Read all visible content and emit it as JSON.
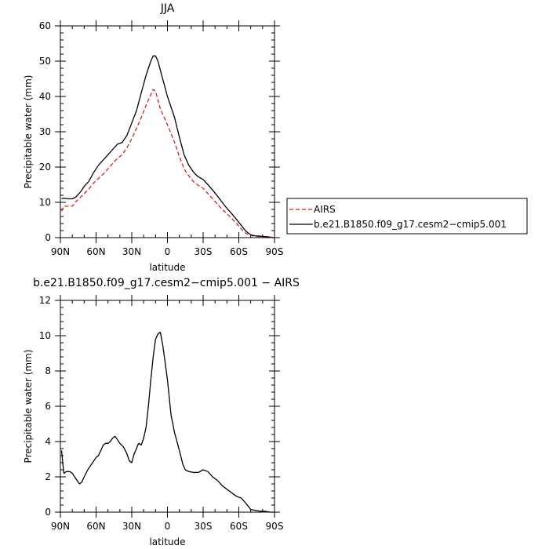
{
  "chart_data": [
    {
      "type": "line",
      "title": "JJA",
      "xlabel": "latitude",
      "ylabel": "Precipitable water (mm)",
      "xlim": [
        90,
        -90
      ],
      "ylim": [
        0,
        60
      ],
      "x_ticks": [
        90,
        60,
        30,
        0,
        -30,
        -60,
        -90
      ],
      "x_tick_labels": [
        "90N",
        "60N",
        "30N",
        "0",
        "30S",
        "60S",
        "90S"
      ],
      "y_ticks": [
        0,
        10,
        20,
        30,
        40,
        50,
        60
      ],
      "y_tick_labels": [
        "0",
        "10",
        "20",
        "30",
        "40",
        "50",
        "60"
      ],
      "grid": false,
      "legend_position": "outside-right",
      "series": [
        {
          "name": "AIRS",
          "color": "#e41a1c",
          "dash": "dashed",
          "x": [
            89,
            87,
            84,
            80,
            77,
            73,
            70,
            66,
            62,
            58,
            54,
            50,
            46,
            42,
            38,
            34,
            30,
            26,
            22,
            18,
            14,
            12,
            10,
            8,
            6,
            4,
            2,
            0,
            -3,
            -6,
            -10,
            -14,
            -18,
            -22,
            -26,
            -30,
            -34,
            -38,
            -42,
            -46,
            -50,
            -54,
            -58,
            -62,
            -66,
            -70,
            -74,
            -78,
            -82,
            -86,
            -89
          ],
          "y": [
            7.5,
            8.9,
            8.9,
            8.9,
            10.2,
            11.5,
            12.5,
            13.8,
            15.5,
            16.8,
            18.0,
            19.5,
            21.0,
            22.5,
            23.5,
            25.5,
            28.0,
            31.0,
            34.0,
            37.5,
            40.5,
            42.0,
            41.5,
            39.0,
            36.5,
            35.0,
            33.5,
            32.0,
            29.5,
            27.0,
            23.0,
            19.5,
            17.5,
            15.8,
            14.8,
            14.0,
            12.5,
            11.0,
            9.5,
            8.0,
            6.8,
            5.5,
            4.0,
            2.5,
            1.2,
            0.6,
            0.4,
            0.3,
            0.2,
            0.1,
            0.0
          ]
        },
        {
          "name": "b.e21.B1850.f09_g17.cesm2−cmip5.001",
          "color": "#000000",
          "dash": "solid",
          "x": [
            89,
            87,
            84,
            80,
            77,
            73,
            70,
            66,
            62,
            58,
            54,
            50,
            46,
            42,
            38,
            34,
            30,
            26,
            22,
            18,
            14,
            12,
            10,
            8,
            6,
            4,
            2,
            0,
            -3,
            -6,
            -10,
            -14,
            -18,
            -22,
            -26,
            -30,
            -34,
            -38,
            -42,
            -46,
            -50,
            -54,
            -58,
            -62,
            -66,
            -70,
            -74,
            -78,
            -82,
            -86,
            -89
          ],
          "y": [
            11.0,
            11.2,
            11.0,
            11.0,
            11.5,
            13.0,
            14.5,
            16.0,
            18.5,
            20.5,
            22.0,
            23.5,
            25.0,
            26.5,
            27.0,
            29.0,
            32.5,
            36.0,
            41.0,
            46.0,
            50.0,
            51.5,
            51.5,
            50.0,
            47.5,
            45.0,
            42.5,
            40.0,
            37.0,
            34.0,
            28.5,
            23.5,
            20.5,
            18.5,
            17.2,
            16.5,
            15.0,
            13.5,
            11.8,
            10.0,
            8.3,
            6.8,
            5.2,
            3.5,
            1.8,
            0.8,
            0.5,
            0.4,
            0.3,
            0.2,
            0.0
          ]
        }
      ]
    },
    {
      "type": "line",
      "title": "b.e21.B1850.f09_g17.cesm2−cmip5.001  −  AIRS",
      "xlabel": "latitude",
      "ylabel": "Precipitable water (mm)",
      "xlim": [
        90,
        -90
      ],
      "ylim": [
        0,
        12
      ],
      "x_ticks": [
        90,
        60,
        30,
        0,
        -30,
        -60,
        -90
      ],
      "x_tick_labels": [
        "90N",
        "60N",
        "30N",
        "0",
        "30S",
        "60S",
        "90S"
      ],
      "y_ticks": [
        0,
        2,
        4,
        6,
        8,
        10,
        12
      ],
      "y_tick_labels": [
        "0",
        "2",
        "4",
        "6",
        "8",
        "10",
        "12"
      ],
      "grid": false,
      "series": [
        {
          "color": "#000000",
          "dash": "solid",
          "x": [
            89,
            88,
            87,
            85,
            82,
            80,
            78,
            76,
            74,
            72,
            70,
            67,
            64,
            62,
            60,
            58,
            56,
            54,
            52,
            50,
            48,
            46,
            44,
            42,
            40,
            37,
            34,
            32,
            30,
            28,
            26,
            25,
            24,
            22,
            20,
            18,
            16,
            14,
            12,
            10,
            8,
            6,
            4,
            2,
            0,
            -3,
            -6,
            -10,
            -13,
            -15,
            -18,
            -22,
            -26,
            -30,
            -34,
            -38,
            -42,
            -46,
            -50,
            -54,
            -58,
            -62,
            -66,
            -70,
            -74,
            -78,
            -82,
            -86,
            -89
          ],
          "y": [
            3.5,
            2.8,
            2.2,
            2.3,
            2.3,
            2.2,
            2.0,
            1.8,
            1.6,
            1.7,
            2.0,
            2.4,
            2.7,
            2.9,
            3.1,
            3.2,
            3.5,
            3.8,
            3.9,
            3.9,
            4.0,
            4.2,
            4.3,
            4.1,
            3.9,
            3.7,
            3.3,
            2.9,
            2.8,
            3.3,
            3.6,
            3.8,
            3.9,
            3.8,
            4.2,
            4.8,
            6.0,
            7.5,
            8.8,
            9.8,
            10.1,
            10.2,
            9.5,
            8.5,
            7.5,
            5.5,
            4.5,
            3.5,
            2.7,
            2.4,
            2.3,
            2.25,
            2.25,
            2.4,
            2.3,
            2.0,
            1.8,
            1.5,
            1.3,
            1.1,
            0.9,
            0.8,
            0.5,
            0.15,
            0.1,
            0.05,
            0.05,
            0.0,
            0.0
          ]
        }
      ]
    }
  ]
}
